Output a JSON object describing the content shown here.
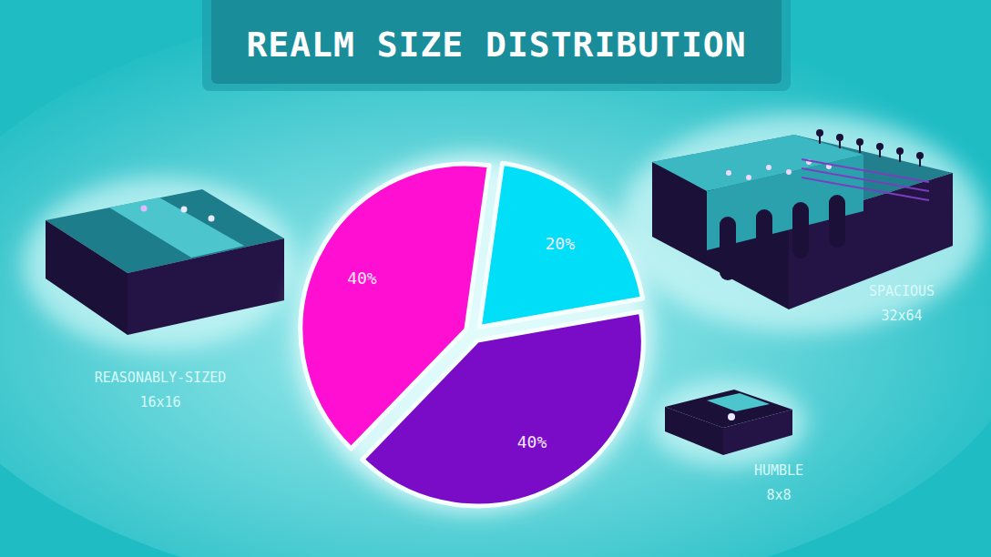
{
  "chart_data": {
    "type": "pie",
    "title": "REALM SIZE DISTRIBUTION",
    "categories": [
      "REASONABLY-SIZED",
      "SPACIOUS",
      "HUMBLE"
    ],
    "size_labels": [
      "16x16",
      "32x64",
      "8x8"
    ],
    "values": [
      40,
      20,
      40
    ],
    "value_labels": [
      "40%",
      "20%",
      "40%"
    ],
    "colors": [
      "#ff0fd2",
      "#00def8",
      "#7a0bc6"
    ],
    "data_labels": true
  }
}
